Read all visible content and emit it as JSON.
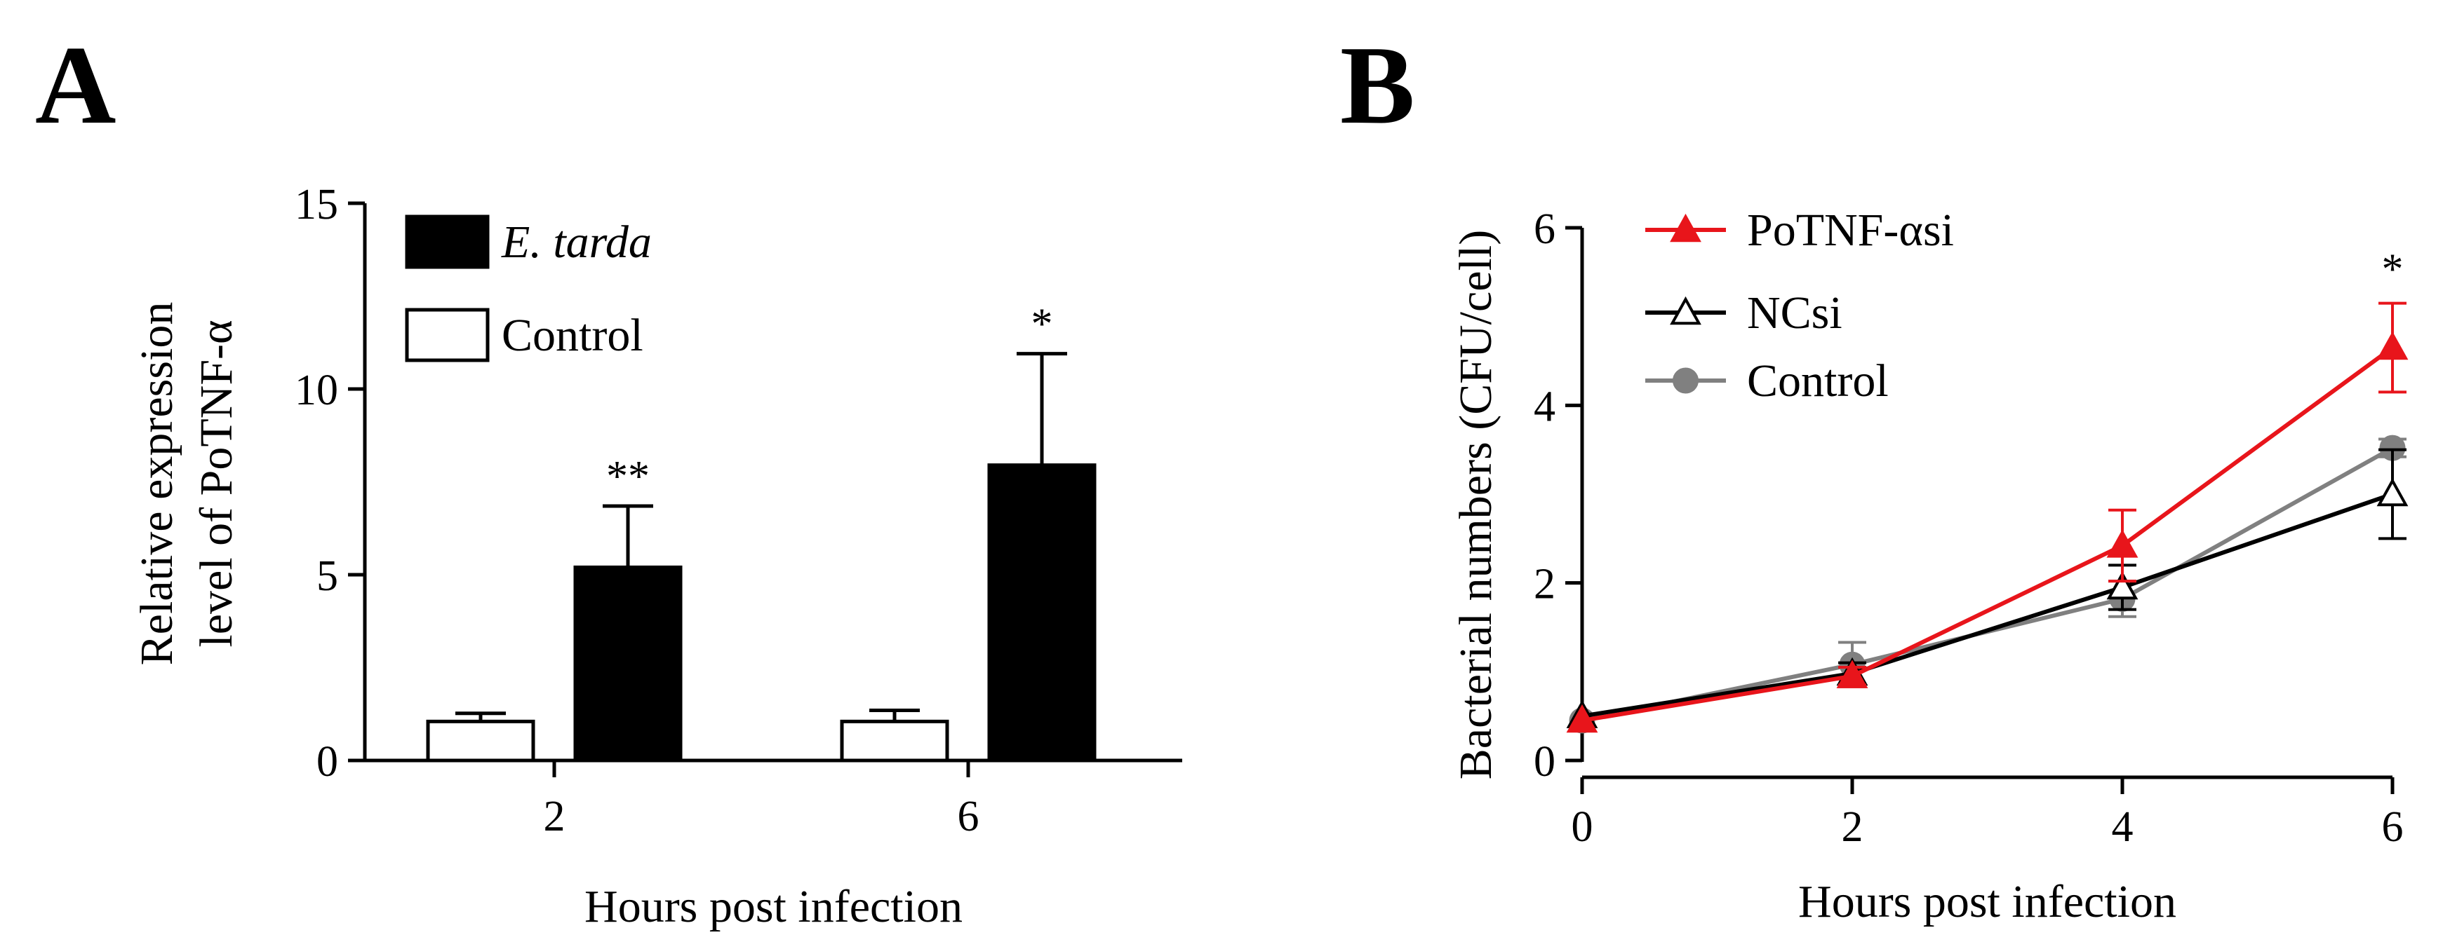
{
  "panels": {
    "a_letter": "A",
    "b_letter": "B"
  },
  "chart_data": [
    {
      "type": "bar",
      "panel": "A",
      "xlabel": "Hours post infection",
      "ylabel_line1": "Relative expression",
      "ylabel_line2": "level of PoTNF-α",
      "ylim": [
        0,
        15
      ],
      "yticks": [
        0,
        5,
        10,
        15
      ],
      "categories": [
        "2",
        "6"
      ],
      "series": [
        {
          "name": "Control",
          "values": [
            1.05,
            1.05
          ],
          "errors": [
            0.22,
            0.3
          ],
          "color": "#ffffff"
        },
        {
          "name": "E. tarda",
          "values": [
            5.2,
            7.95
          ],
          "errors": [
            1.65,
            3.0
          ],
          "color": "#000000"
        }
      ],
      "significance": [
        "**",
        "*"
      ],
      "legend_order": [
        "E. tarda",
        "Control"
      ],
      "legend_placement": "top-left"
    },
    {
      "type": "line",
      "panel": "B",
      "xlabel": "Hours post infection",
      "ylabel": "Bacterial numbers (CFU/cell)",
      "xlim": [
        0,
        6
      ],
      "ylim": [
        0,
        6
      ],
      "xticks": [
        0,
        2,
        4,
        6
      ],
      "yticks": [
        0,
        2,
        4,
        6
      ],
      "series": [
        {
          "name": "PoTNF-αsi",
          "color": "#e8151b",
          "marker": "triangle-filled",
          "x": [
            0,
            2,
            4,
            6
          ],
          "y": [
            0.45,
            0.95,
            2.42,
            4.65
          ],
          "errors": [
            0.05,
            0.1,
            0.4,
            0.5
          ]
        },
        {
          "name": "NCsi",
          "color": "#000000",
          "marker": "triangle-open",
          "x": [
            0,
            2,
            4,
            6
          ],
          "y": [
            0.5,
            0.98,
            1.95,
            3.0
          ],
          "errors": [
            0.05,
            0.12,
            0.25,
            0.5
          ]
        },
        {
          "name": "Control",
          "color": "#808080",
          "marker": "circle-filled",
          "x": [
            0,
            2,
            4,
            6
          ],
          "y": [
            0.45,
            1.08,
            1.82,
            3.52
          ],
          "errors": [
            0.05,
            0.25,
            0.2,
            0.1
          ]
        }
      ],
      "significance": [
        {
          "x": 6,
          "label": "*"
        }
      ],
      "legend_placement": "top-left"
    }
  ]
}
